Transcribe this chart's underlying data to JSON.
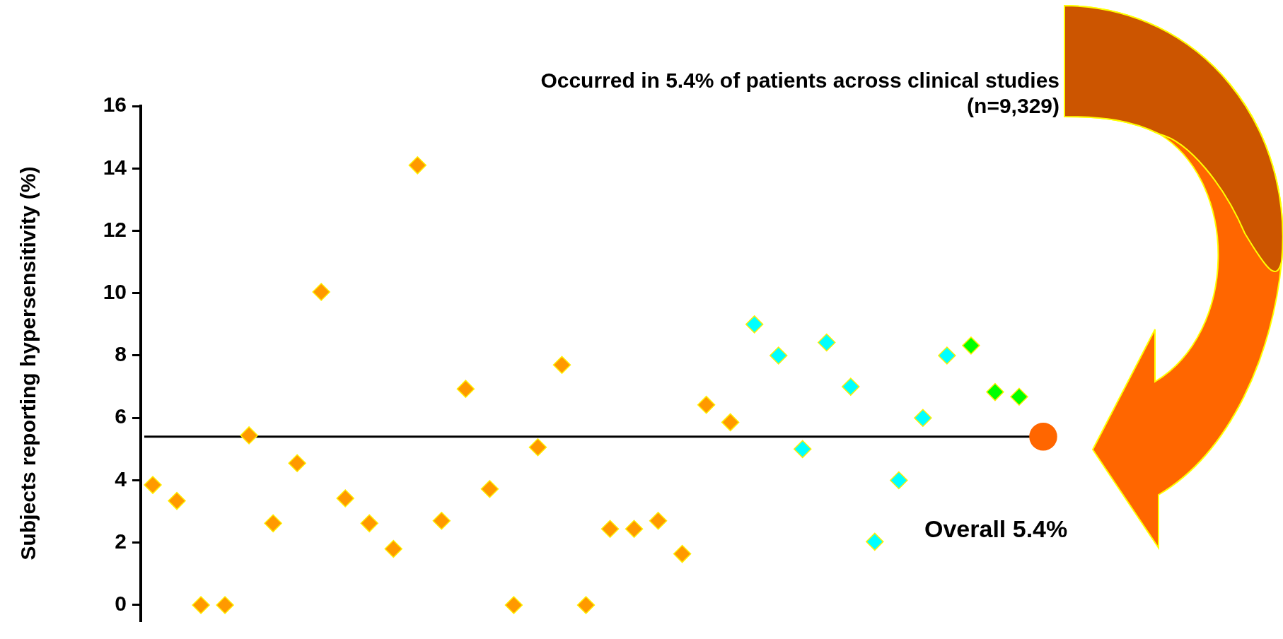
{
  "chart_data": {
    "type": "scatter",
    "ylabel": "Subjects reporting hypersensitivity (%)",
    "categories": [
      null,
      null,
      null,
      null,
      null,
      null,
      null,
      null,
      null,
      null,
      null,
      null,
      null,
      null,
      null,
      null,
      null,
      null,
      null,
      null,
      null,
      null,
      null,
      null,
      null,
      null,
      null,
      null,
      null,
      null,
      null,
      null,
      null,
      null,
      null,
      null,
      null,
      null
    ],
    "series": [
      {
        "color": "#ff9900",
        "marker": "diamond",
        "values": [
          3.85,
          3.34,
          0,
          0,
          5.44,
          2.62,
          4.55,
          10.04,
          3.42,
          2.62,
          1.8,
          14.1,
          2.7,
          6.93,
          3.72,
          0,
          5.06,
          7.7,
          0,
          2.44,
          2.44,
          2.7,
          1.64,
          6.42,
          5.86,
          null,
          null,
          null,
          null,
          null,
          null,
          null,
          null,
          null,
          null,
          null,
          null,
          null
        ]
      },
      {
        "color": "#00ffff",
        "marker": "diamond",
        "values": [
          null,
          null,
          null,
          null,
          null,
          null,
          null,
          null,
          null,
          null,
          null,
          null,
          null,
          null,
          null,
          null,
          null,
          null,
          null,
          null,
          null,
          null,
          null,
          null,
          null,
          9,
          8,
          5,
          8.42,
          7,
          2.03,
          4,
          6,
          8,
          null,
          null,
          null,
          null
        ]
      },
      {
        "color": "#00ff00",
        "marker": "diamond",
        "values": [
          null,
          null,
          null,
          null,
          null,
          null,
          null,
          null,
          null,
          null,
          null,
          null,
          null,
          null,
          null,
          null,
          null,
          null,
          null,
          null,
          null,
          null,
          null,
          null,
          null,
          null,
          null,
          null,
          null,
          null,
          null,
          null,
          null,
          null,
          8.32,
          6.83,
          6.68,
          null
        ]
      },
      {
        "color": "#ff6600",
        "marker": "circle",
        "values": [
          null,
          null,
          null,
          null,
          null,
          null,
          null,
          null,
          null,
          null,
          null,
          null,
          null,
          null,
          null,
          null,
          null,
          null,
          null,
          null,
          null,
          null,
          null,
          null,
          null,
          null,
          null,
          null,
          null,
          null,
          null,
          null,
          null,
          null,
          null,
          null,
          null,
          5.4
        ]
      }
    ],
    "ylim": [
      -0.5,
      16
    ],
    "yticks": [
      0,
      2,
      4,
      6,
      8,
      10,
      12,
      14,
      16
    ],
    "ref_lines": [
      {
        "axis": "y",
        "value": 5.4,
        "color": "#000000",
        "line_style": "solid"
      }
    ],
    "annotations": [
      "Occurred in 5.4% of patients across clinical studies",
      "(n=9,329)",
      "Overall 5.4%"
    ],
    "grid": false,
    "legend": false,
    "tick_labels": "y"
  }
}
